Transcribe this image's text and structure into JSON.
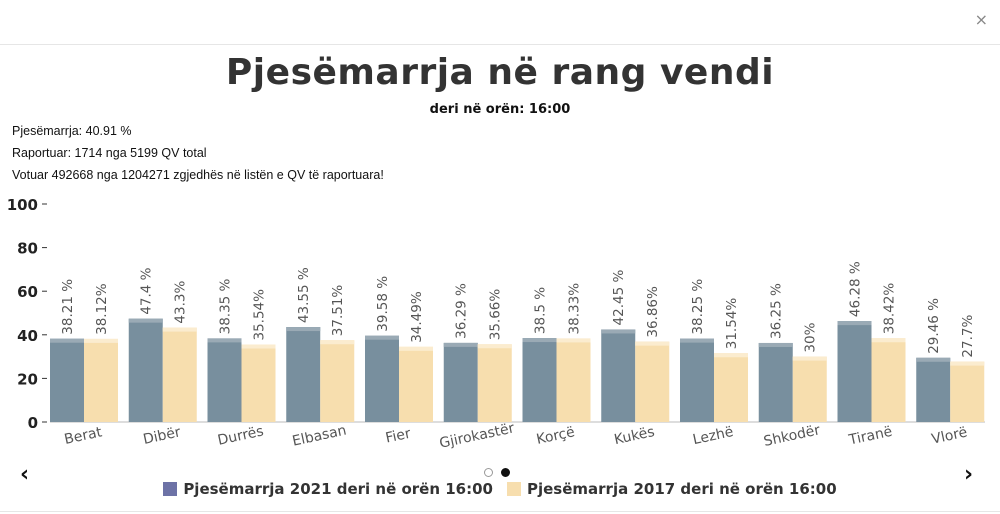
{
  "header": {
    "close_label": "×"
  },
  "info": {
    "participation": "Pjesëmarrja: 40.91 %",
    "reported": "Raportuar: 1714 nga 5199 QV total",
    "voted": "Votuar 492668 nga 1204271 zgjedhës në listën e QV të raportuara!"
  },
  "nav": {
    "prev": "‹",
    "next": "›"
  },
  "colors": {
    "series2021": "#788f9e",
    "series2017": "#f7deae",
    "legend2021": "#6d72a6"
  },
  "chart_data": {
    "type": "bar",
    "title": "Pjesëmarrja në rang vendi",
    "subtitle": "deri në orën: 16:00",
    "categories": [
      "Berat",
      "Dibër",
      "Durrës",
      "Elbasan",
      "Fier",
      "Gjirokastër",
      "Korçë",
      "Kukës",
      "Lezhë",
      "Shkodër",
      "Tiranë",
      "Vlorë"
    ],
    "series": [
      {
        "name": "Pjesëmarrja 2021 deri në orën 16:00",
        "values": [
          38.21,
          47.4,
          38.35,
          43.55,
          39.58,
          36.29,
          38.5,
          42.45,
          38.25,
          36.25,
          46.28,
          29.46
        ],
        "labels": [
          "38.21 %",
          "47.4 %",
          "38.35 %",
          "43.55 %",
          "39.58 %",
          "36.29 %",
          "38.5 %",
          "42.45 %",
          "38.25 %",
          "36.25 %",
          "46.28 %",
          "29.46 %"
        ]
      },
      {
        "name": "Pjesëmarrja 2017 deri në orën 16:00",
        "values": [
          38.12,
          43.3,
          35.54,
          37.51,
          34.49,
          35.66,
          38.33,
          36.86,
          31.54,
          30,
          38.42,
          27.7
        ],
        "labels": [
          "38.12%",
          "43.3%",
          "35.54%",
          "37.51%",
          "34.49%",
          "35.66%",
          "38.33%",
          "36.86%",
          "31.54%",
          "30%",
          "38.42%",
          "27.7%"
        ]
      }
    ],
    "yticks": [
      "0",
      "20",
      "40",
      "60",
      "80",
      "100"
    ],
    "ylim": [
      0,
      100
    ],
    "grid": false,
    "legend_position": "bottom"
  }
}
